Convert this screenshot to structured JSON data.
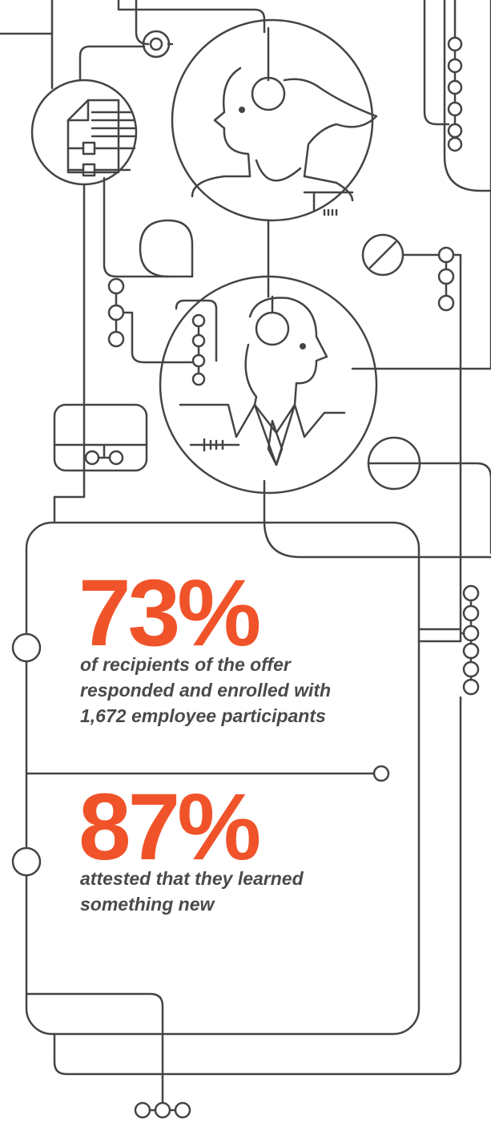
{
  "stats": [
    {
      "value": "73%",
      "description_lines": [
        "of recipients of the offer",
        "responded and enrolled with",
        "1,672 employee participants"
      ]
    },
    {
      "value": "87%",
      "description_lines": [
        "attested that they learned",
        "something new"
      ]
    }
  ]
}
